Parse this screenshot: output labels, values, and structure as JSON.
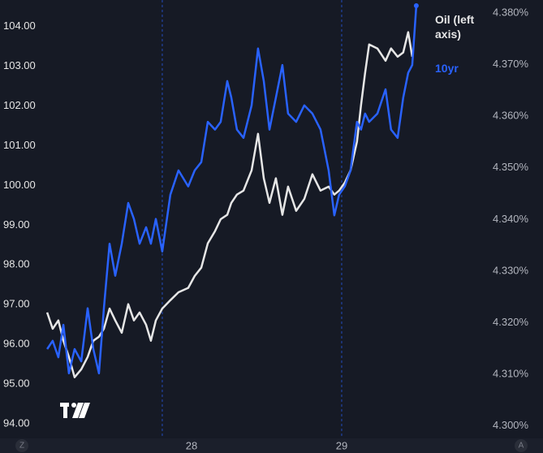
{
  "chart_data": {
    "type": "line",
    "x": [
      27.038,
      27.075,
      27.113,
      27.146,
      27.183,
      27.221,
      27.265,
      27.308,
      27.346,
      27.383,
      27.416,
      27.454,
      27.492,
      27.535,
      27.578,
      27.616,
      27.654,
      27.697,
      27.729,
      27.762,
      27.805,
      27.859,
      27.913,
      27.978,
      28.021,
      28.065,
      28.108,
      28.156,
      28.194,
      28.238,
      28.265,
      28.302,
      28.346,
      28.4,
      28.443,
      28.481,
      28.519,
      28.562,
      28.605,
      28.643,
      28.697,
      28.751,
      28.805,
      28.859,
      28.913,
      28.951,
      28.983,
      29.021,
      29.059,
      29.102,
      29.129,
      29.156,
      29.183,
      29.238,
      29.292,
      29.329,
      29.373,
      29.41,
      29.443,
      29.47,
      29.497
    ],
    "series": [
      {
        "name": "Oil (left axis)",
        "color": "#e6e6e6",
        "values": [
          96.8,
          96.39,
          96.6,
          96.09,
          95.68,
          95.17,
          95.37,
          95.68,
          96.09,
          96.19,
          96.39,
          96.9,
          96.6,
          96.29,
          97.01,
          96.6,
          96.8,
          96.49,
          96.09,
          96.6,
          96.9,
          97.11,
          97.31,
          97.42,
          97.72,
          97.93,
          98.54,
          98.85,
          99.15,
          99.26,
          99.56,
          99.77,
          99.87,
          100.38,
          101.3,
          100.18,
          99.56,
          100.18,
          99.26,
          99.97,
          99.36,
          99.66,
          100.28,
          99.87,
          99.97,
          99.77,
          99.87,
          100.07,
          100.38,
          101.1,
          102.02,
          102.83,
          103.55,
          103.45,
          103.14,
          103.45,
          103.24,
          103.35,
          103.86,
          103.24,
          null
        ]
      },
      {
        "name": "10yr",
        "color": "#2962ff",
        "axis": "y2",
        "values": [
          4.3149,
          4.3165,
          4.3133,
          4.3196,
          4.3102,
          4.3149,
          4.3125,
          4.3228,
          4.3149,
          4.3102,
          4.3228,
          4.3353,
          4.3291,
          4.3353,
          4.3432,
          4.3401,
          4.3353,
          4.3385,
          4.3353,
          4.3401,
          4.3338,
          4.3448,
          4.3495,
          4.3464,
          4.3495,
          4.3511,
          4.3589,
          4.3574,
          4.3589,
          4.3668,
          4.3636,
          4.3574,
          4.3558,
          4.3621,
          4.3731,
          4.3668,
          4.3574,
          4.3636,
          4.3699,
          4.3605,
          4.3589,
          4.3621,
          4.3605,
          4.3574,
          4.3495,
          4.3408,
          4.3448,
          4.3464,
          4.3495,
          4.3589,
          4.3574,
          4.3605,
          4.3589,
          4.3605,
          4.3652,
          4.3574,
          4.3558,
          4.3636,
          4.3684,
          4.3699,
          4.3814
        ]
      }
    ],
    "xlim": [
      26.724,
      29.941
    ],
    "xticks": [
      {
        "value": 28,
        "label": "28"
      },
      {
        "value": 29,
        "label": "29"
      }
    ],
    "session_lines": [
      27.805,
      29.0
    ],
    "ylim": [
      93.63,
      104.67
    ],
    "yticks": [
      {
        "value": 94,
        "label": "94.00"
      },
      {
        "value": 95,
        "label": "95.00"
      },
      {
        "value": 96,
        "label": "96.00"
      },
      {
        "value": 97,
        "label": "97.00"
      },
      {
        "value": 98,
        "label": "98.00"
      },
      {
        "value": 99,
        "label": "99.00"
      },
      {
        "value": 100,
        "label": "100.00"
      },
      {
        "value": 101,
        "label": "101.00"
      },
      {
        "value": 102,
        "label": "102.00"
      },
      {
        "value": 103,
        "label": "103.00"
      },
      {
        "value": 104,
        "label": "104.00"
      }
    ],
    "y2lim": [
      4.2976,
      4.3825
    ],
    "y2ticks": [
      {
        "value": 4.3,
        "label": "4.300%"
      },
      {
        "value": 4.31,
        "label": "4.310%"
      },
      {
        "value": 4.32,
        "label": "4.320%"
      },
      {
        "value": 4.33,
        "label": "4.330%"
      },
      {
        "value": 4.34,
        "label": "4.340%"
      },
      {
        "value": 4.35,
        "label": "4.350%"
      },
      {
        "value": 4.36,
        "label": "4.360%"
      },
      {
        "value": 4.37,
        "label": "4.370%"
      },
      {
        "value": 4.38,
        "label": "4.380%"
      }
    ]
  },
  "controls": {
    "left": "Z",
    "right": "A"
  }
}
